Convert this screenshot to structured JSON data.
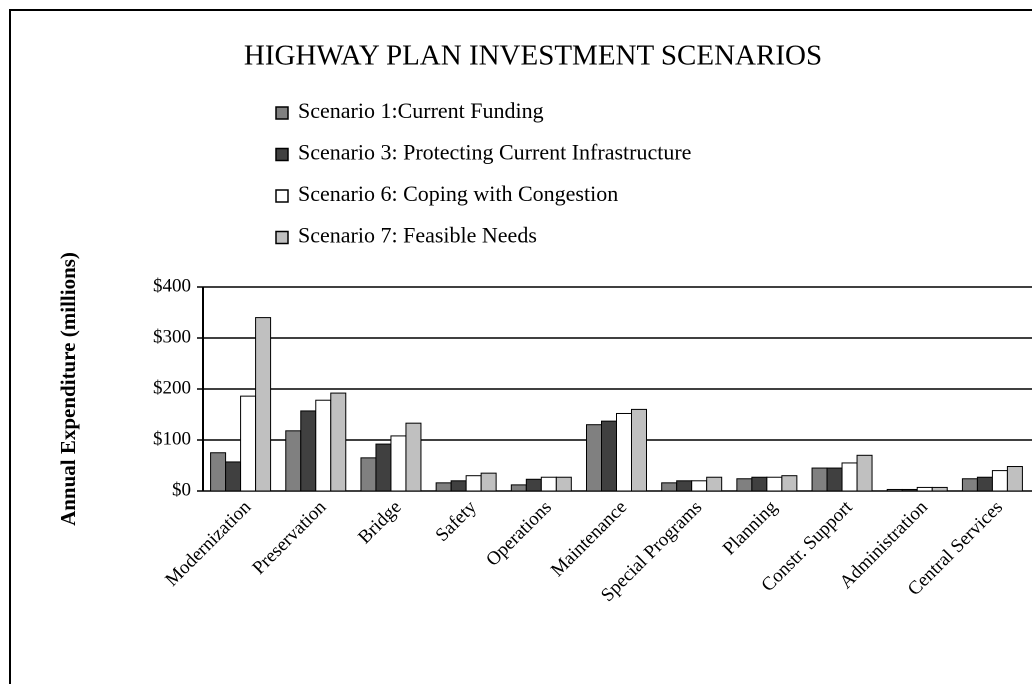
{
  "chart_data": {
    "type": "bar",
    "title": "HIGHWAY PLAN INVESTMENT SCENARIOS",
    "y_label": "Annual Expenditure (millions)",
    "categories": [
      "Modernization",
      "Preservation",
      "Bridge",
      "Safety",
      "Operations",
      "Maintenance",
      "Special Programs",
      "Planning",
      "Constr. Support",
      "Administration",
      "Central Services"
    ],
    "series": [
      {
        "name": "Scenario 1:Current Funding",
        "color": "#808080",
        "values": [
          75,
          118,
          65,
          16,
          12,
          130,
          16,
          24,
          45,
          3,
          24
        ]
      },
      {
        "name": "Scenario 3: Protecting Current Infrastructure",
        "color": "#404040",
        "values": [
          57,
          157,
          92,
          20,
          23,
          137,
          20,
          27,
          45,
          3,
          27
        ]
      },
      {
        "name": "Scenario 6: Coping with Congestion",
        "color": "#ffffff",
        "values": [
          186,
          178,
          108,
          30,
          27,
          152,
          20,
          27,
          55,
          7,
          40
        ]
      },
      {
        "name": "Scenario 7: Feasible Needs",
        "color": "#c0c0c0",
        "values": [
          340,
          192,
          133,
          35,
          27,
          160,
          27,
          30,
          70,
          7,
          48
        ]
      }
    ],
    "ylim": [
      0,
      400
    ],
    "yticks": [
      {
        "value": 0,
        "label": "$0"
      },
      {
        "value": 100,
        "label": "$100"
      },
      {
        "value": 200,
        "label": "$200"
      },
      {
        "value": 300,
        "label": "$300"
      },
      {
        "value": 400,
        "label": "$400"
      }
    ],
    "grid": true
  }
}
